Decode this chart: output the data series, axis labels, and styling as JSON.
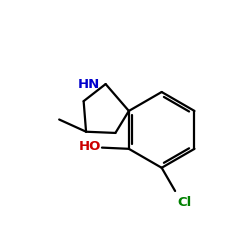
{
  "background_color": "#ffffff",
  "bond_color": "#000000",
  "N_color": "#0000cc",
  "O_color": "#cc0000",
  "Cl_color": "#008000",
  "HN_label": "HN",
  "HO_label": "HO",
  "Cl_label": "Cl",
  "figsize": [
    2.5,
    2.5
  ],
  "dpi": 100,
  "line_width": 1.6,
  "xlim": [
    0,
    10
  ],
  "ylim": [
    0,
    10
  ]
}
